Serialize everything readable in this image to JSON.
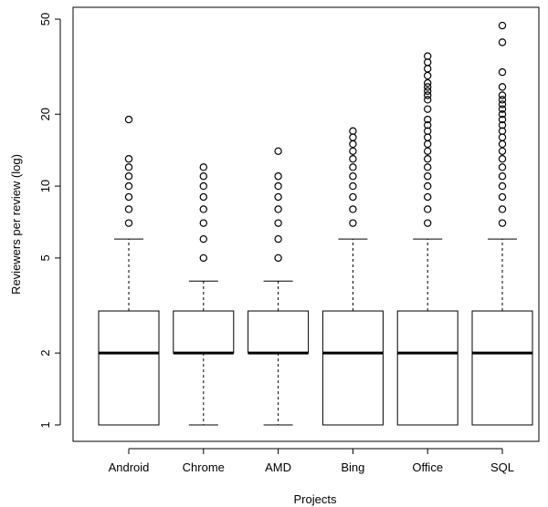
{
  "chart_data": {
    "type": "boxplot",
    "xlabel": "Projects",
    "ylabel": "Reviewers per review (log)",
    "yscale": "log",
    "ylim": [
      0.85,
      52
    ],
    "yticks": [
      1,
      2,
      5,
      10,
      20,
      50
    ],
    "ytick_labels": [
      "1",
      "2",
      "5",
      "10",
      "20",
      "50"
    ],
    "categories": [
      "Android",
      "Chrome",
      "AMD",
      "Bing",
      "Office",
      "SQL"
    ],
    "boxes": [
      {
        "name": "Android",
        "min": 1,
        "q1": 1,
        "median": 2,
        "q3": 3,
        "max": 6,
        "outliers": [
          7,
          8,
          9,
          10,
          11,
          12,
          13,
          19
        ]
      },
      {
        "name": "Chrome",
        "min": 1,
        "q1": 2,
        "median": 2,
        "q3": 3,
        "max": 4,
        "outliers": [
          5,
          6,
          7,
          8,
          9,
          10,
          11,
          12
        ]
      },
      {
        "name": "AMD",
        "min": 1,
        "q1": 2,
        "median": 2,
        "q3": 3,
        "max": 4,
        "outliers": [
          5,
          6,
          7,
          8,
          9,
          10,
          11,
          14
        ]
      },
      {
        "name": "Bing",
        "min": 1,
        "q1": 1,
        "median": 2,
        "q3": 3,
        "max": 6,
        "outliers": [
          7,
          8,
          9,
          10,
          11,
          12,
          13,
          14,
          15,
          16,
          17
        ]
      },
      {
        "name": "Office",
        "min": 1,
        "q1": 1,
        "median": 2,
        "q3": 3,
        "max": 6,
        "outliers": [
          7,
          8,
          9,
          10,
          11,
          12,
          13,
          14,
          15,
          16,
          17,
          18,
          19,
          21,
          23,
          24,
          25,
          26,
          27,
          29,
          31,
          33,
          35
        ]
      },
      {
        "name": "SQL",
        "min": 1,
        "q1": 1,
        "median": 2,
        "q3": 3,
        "max": 6,
        "outliers": [
          7,
          8,
          9,
          10,
          11,
          12,
          13,
          14,
          15,
          16,
          17,
          18,
          19,
          20,
          21,
          22,
          23,
          24,
          26,
          30,
          40,
          47
        ]
      }
    ]
  }
}
